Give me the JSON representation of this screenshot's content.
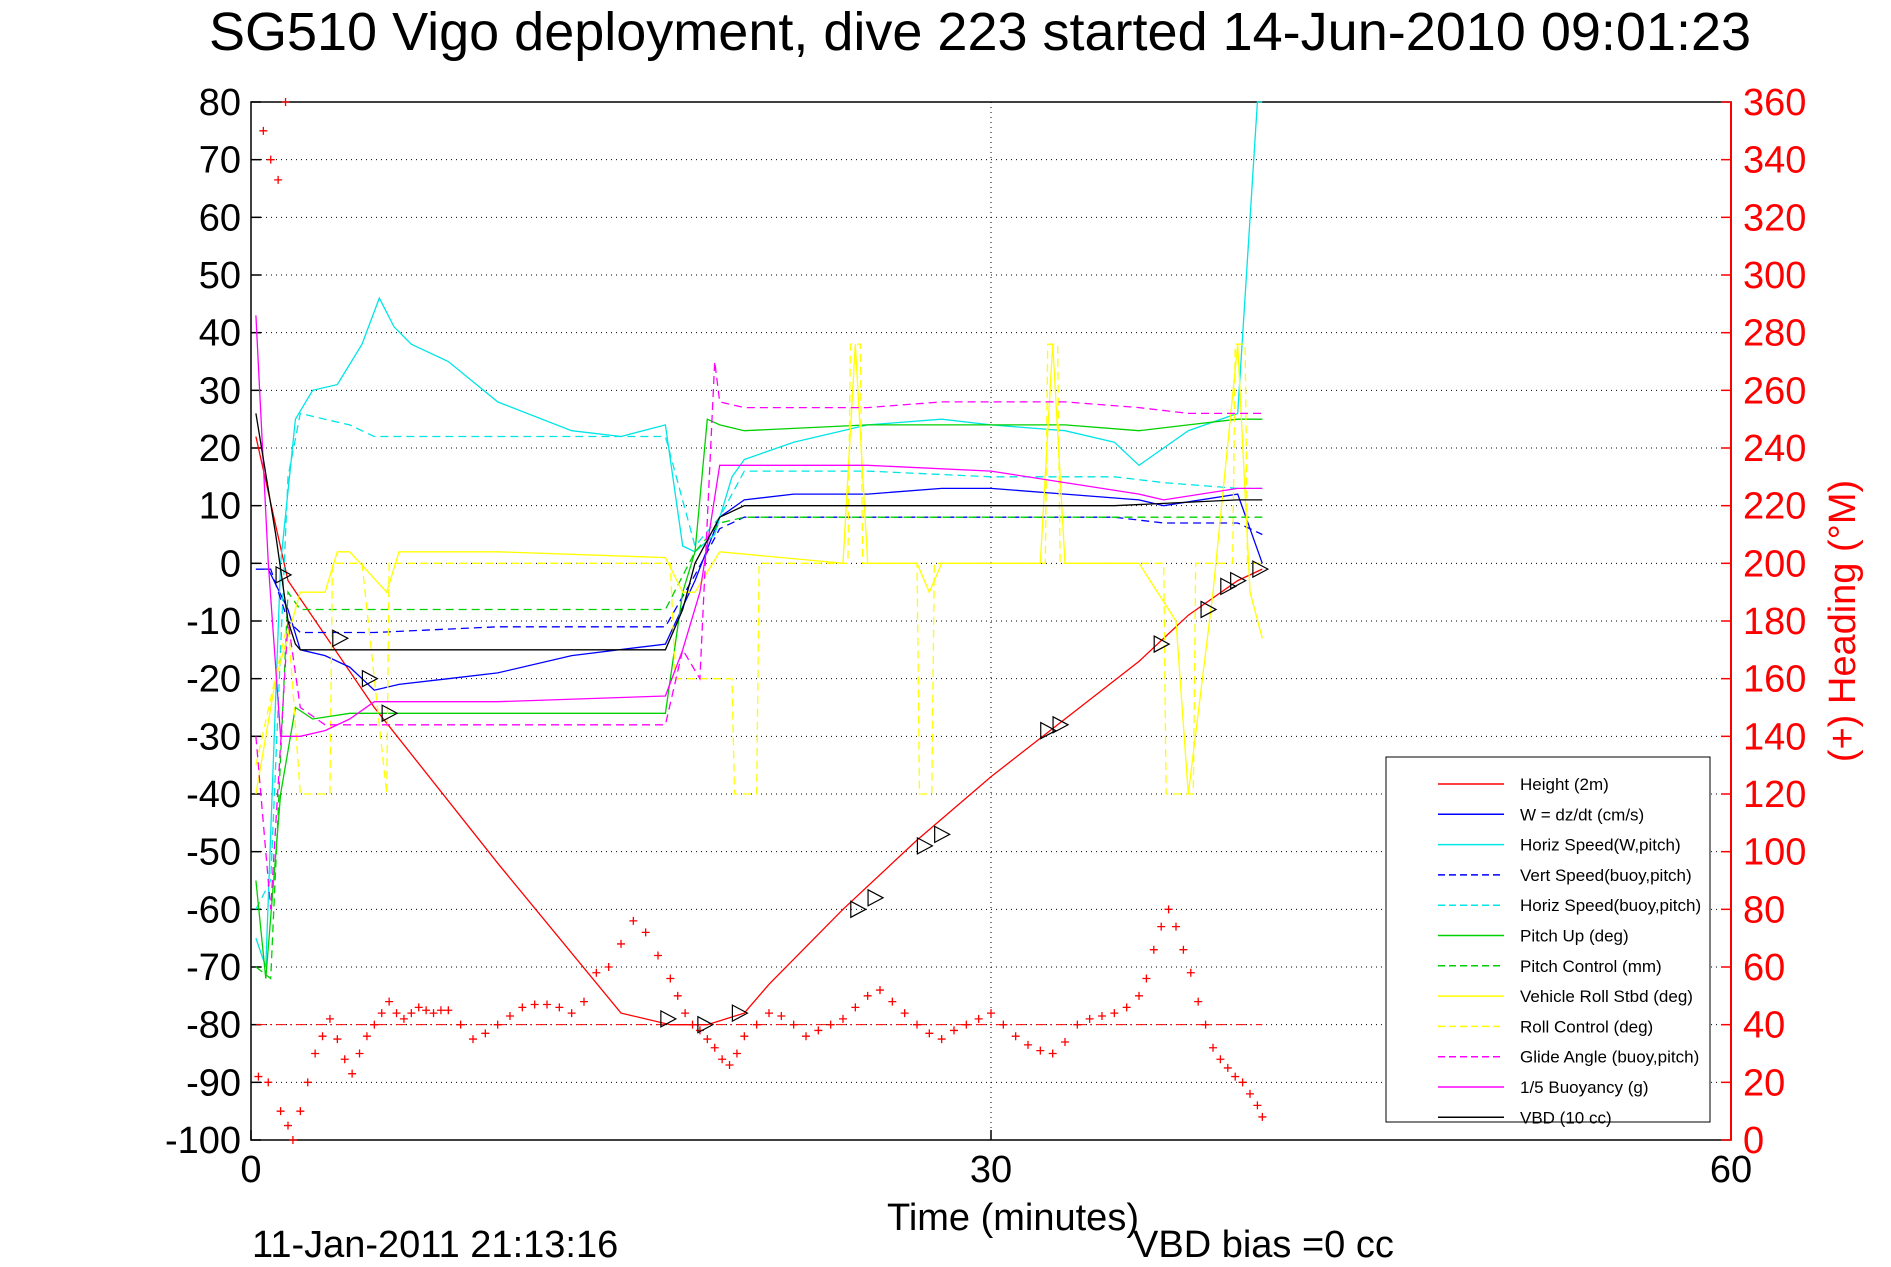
{
  "title": "SG510 Vigo deployment, dive 223 started 14-Jun-2010 09:01:23",
  "footer": {
    "timestamp": "11-Jan-2011 21:13:16",
    "vbd_bias": "VBD bias =0 cc"
  },
  "chart_data": {
    "type": "line",
    "xlabel": "Time (minutes)",
    "ylabel_right": "(+) Heading (°M)",
    "xlim": [
      0,
      60
    ],
    "ylim_left": [
      -100,
      80
    ],
    "ylim_right": [
      0,
      360
    ],
    "x_ticks": [
      "0",
      "30",
      "60"
    ],
    "y_ticks_left": [
      "80",
      "70",
      "60",
      "50",
      "40",
      "30",
      "20",
      "10",
      "0",
      "-10",
      "-20",
      "-30",
      "-40",
      "-50",
      "-60",
      "-70",
      "-80",
      "-90",
      "-100"
    ],
    "y_ticks_right": [
      "360",
      "340",
      "320",
      "300",
      "280",
      "260",
      "240",
      "220",
      "200",
      "180",
      "160",
      "140",
      "120",
      "100",
      "80",
      "60",
      "40",
      "20",
      "0"
    ],
    "grid": "dotted",
    "legend_position": "bottom-right",
    "colors": {
      "red": "#ff0000",
      "blue": "#0000ff",
      "cyan": "#00e5e5",
      "green": "#00d000",
      "yellow": "#ffff00",
      "magenta": "#ff00ff",
      "black": "#000000"
    },
    "series": [
      {
        "name": "Height (2m)",
        "color": "#ff0000",
        "dash": false,
        "x": [
          0.2,
          1.5,
          5,
          10,
          15,
          17,
          18.5,
          20,
          21,
          24,
          27,
          30,
          33,
          36,
          38,
          40,
          41
        ],
        "y": [
          22,
          -3,
          -25,
          -52,
          -78,
          -80,
          -80,
          -78,
          -73,
          -60,
          -48,
          -37,
          -27,
          -17,
          -9,
          -3,
          -1
        ]
      },
      {
        "name": "W = dz/dt (cm/s)",
        "color": "#0000ff",
        "dash": false,
        "x": [
          0.2,
          0.7,
          1.5,
          2,
          3,
          4,
          5,
          6,
          8,
          10,
          13,
          16.8,
          18,
          19,
          20,
          22,
          25,
          28,
          30,
          33,
          36,
          37,
          40,
          41
        ],
        "y": [
          -1,
          -1,
          -8,
          -15,
          -16,
          -18,
          -22,
          -21,
          -20,
          -19,
          -16,
          -14,
          -3,
          8,
          11,
          12,
          12,
          13,
          13,
          12,
          11,
          10,
          12,
          0
        ]
      },
      {
        "name": "Horiz Speed(W,pitch)",
        "color": "#00e5e5",
        "dash": false,
        "x": [
          0.2,
          0.6,
          1.2,
          1.8,
          2.5,
          3.5,
          4.5,
          5.2,
          5.8,
          6.5,
          8,
          10,
          13,
          15,
          16.8,
          17.5,
          18,
          18.8,
          19.5,
          20,
          22,
          25,
          28,
          30,
          33,
          35,
          36,
          38,
          40,
          40.8,
          41
        ],
        "y": [
          -65,
          -70,
          0,
          25,
          30,
          31,
          38,
          46,
          41,
          38,
          35,
          28,
          23,
          22,
          24,
          3,
          2,
          5,
          15,
          18,
          21,
          24,
          25,
          24,
          23,
          21,
          17,
          23,
          26,
          80,
          80
        ]
      },
      {
        "name": "Vert Speed(buoy,pitch)",
        "color": "#0000ff",
        "dash": true,
        "x": [
          0.2,
          0.8,
          1.5,
          2,
          5,
          10,
          16.8,
          18,
          19,
          20,
          25,
          30,
          35,
          37,
          40,
          41
        ],
        "y": [
          -1,
          -1,
          -10,
          -12,
          -12,
          -11,
          -11,
          -2,
          6,
          8,
          8,
          8,
          8,
          7,
          7,
          5
        ]
      },
      {
        "name": "Horiz Speed(buoy,pitch)",
        "color": "#00e5e5",
        "dash": true,
        "x": [
          0.2,
          0.8,
          1.5,
          2,
          3,
          4,
          5,
          6,
          10,
          16.8,
          18,
          19,
          20,
          25,
          30,
          35,
          37,
          40,
          41
        ],
        "y": [
          -60,
          -55,
          15,
          26,
          25,
          24,
          22,
          22,
          22,
          22,
          3,
          8,
          16,
          16,
          15,
          15,
          14,
          13,
          13
        ]
      },
      {
        "name": "Pitch Up (deg)",
        "color": "#00d000",
        "dash": false,
        "x": [
          0.2,
          0.6,
          1.2,
          1.8,
          2.5,
          4,
          6,
          10,
          16.8,
          17.5,
          18,
          18.5,
          19,
          20,
          25,
          30,
          33,
          36,
          38,
          40,
          41
        ],
        "y": [
          -55,
          -72,
          -40,
          -25,
          -27,
          -26,
          -26,
          -26,
          -26,
          -5,
          2,
          25,
          24,
          23,
          24,
          24,
          24,
          23,
          24,
          25,
          25
        ]
      },
      {
        "name": "Pitch Control (mm)",
        "color": "#00d000",
        "dash": true,
        "x": [
          0.2,
          0.8,
          1.5,
          2,
          10,
          16.8,
          18,
          19,
          20,
          30,
          40,
          41
        ],
        "y": [
          -70,
          -72,
          -5,
          -8,
          -8,
          -8,
          2,
          7,
          8,
          8,
          8,
          8
        ]
      },
      {
        "name": "Vehicle Roll Stbd (deg)",
        "color": "#ffff00",
        "dash": false,
        "x": [
          0.2,
          1,
          2,
          3,
          3.5,
          4,
          5.5,
          6,
          10,
          16.8,
          17.5,
          18,
          19,
          24,
          24.5,
          25,
          27,
          27.5,
          28,
          32,
          32.5,
          33,
          36,
          37.5,
          38,
          39,
          40,
          40.5,
          41
        ],
        "y": [
          -40,
          -20,
          -5,
          -5,
          2,
          2,
          -5,
          2,
          2,
          1,
          -5,
          -5,
          2,
          0,
          38,
          0,
          0,
          -5,
          0,
          0,
          38,
          0,
          0,
          -10,
          -40,
          -5,
          38,
          -5,
          -13
        ]
      },
      {
        "name": "Roll Control (deg)",
        "color": "#ffff00",
        "dash": true,
        "x": [
          0.2,
          1.5,
          2,
          3.2,
          3.3,
          4.5,
          5.5,
          5.6,
          17,
          17.2,
          19.5,
          19.6,
          20.5,
          20.6,
          24.2,
          24.3,
          24.7,
          24.8,
          27,
          27.1,
          27.6,
          27.7,
          32.2,
          32.3,
          32.7,
          32.8,
          37,
          37.1,
          38.2,
          38.3,
          39.8,
          39.9,
          40.3,
          40.4,
          41
        ],
        "y": [
          -35,
          -10,
          -40,
          -40,
          0,
          0,
          -40,
          0,
          0,
          -20,
          -20,
          -40,
          -40,
          0,
          0,
          38,
          38,
          0,
          0,
          -40,
          -40,
          0,
          0,
          38,
          38,
          0,
          0,
          -40,
          -40,
          0,
          0,
          38,
          38,
          0,
          0
        ]
      },
      {
        "name": "Glide Angle (buoy,pitch)",
        "color": "#ff00ff",
        "dash": true,
        "x": [
          0.2,
          0.8,
          1.5,
          2,
          3,
          5,
          8,
          10,
          16.8,
          17.5,
          18.2,
          18.8,
          19,
          20,
          25,
          28,
          30,
          33,
          36,
          38,
          40,
          41
        ],
        "y": [
          -30,
          -60,
          -10,
          -25,
          -28,
          -28,
          -28,
          -28,
          -28,
          -15,
          -20,
          35,
          28,
          27,
          27,
          28,
          28,
          28,
          27,
          26,
          26,
          26
        ]
      },
      {
        "name": "1/5 Buoyancy (g)",
        "color": "#ff00ff",
        "dash": false,
        "x": [
          0.2,
          0.7,
          1.2,
          1.6,
          2,
          3,
          4,
          5,
          6,
          10,
          16.8,
          17.5,
          18.2,
          19,
          20,
          25,
          30,
          36,
          37,
          40,
          41
        ],
        "y": [
          43,
          0,
          -30,
          -30,
          -30,
          -29,
          -27,
          -24,
          -24,
          -24,
          -23,
          -15,
          -5,
          17,
          17,
          17,
          16,
          12,
          11,
          13,
          13
        ]
      },
      {
        "name": "VBD (10 cc)",
        "color": "#000000",
        "dash": false,
        "x": [
          0.2,
          1,
          1.5,
          1.8,
          2,
          10,
          16.8,
          17.5,
          18,
          19,
          20,
          25,
          30,
          35,
          40,
          41
        ],
        "y": [
          26,
          5,
          -10,
          -14,
          -15,
          -15,
          -15,
          -8,
          0,
          8,
          10,
          10,
          10,
          10,
          11,
          11
        ]
      }
    ],
    "heading_markers": {
      "name": "(+) Heading (°M)",
      "color": "#ff0000",
      "marker": "+",
      "mean_line": 40,
      "x": [
        0.3,
        0.7,
        1.2,
        1.5,
        1.7,
        2,
        2.3,
        2.6,
        2.9,
        3.2,
        3.5,
        3.8,
        4.1,
        4.4,
        4.7,
        5,
        5.3,
        5.6,
        5.9,
        6.2,
        6.5,
        6.8,
        7.1,
        7.4,
        7.7,
        8,
        8.5,
        9,
        9.5,
        10,
        10.5,
        11,
        11.5,
        12,
        12.5,
        13,
        13.5,
        14,
        14.5,
        15,
        15.5,
        16,
        16.5,
        17,
        17.3,
        17.6,
        17.9,
        18.2,
        18.5,
        18.8,
        19.1,
        19.4,
        19.7,
        20,
        20.5,
        21,
        21.5,
        22,
        22.5,
        23,
        23.5,
        24,
        24.5,
        25,
        25.5,
        26,
        26.5,
        27,
        27.5,
        28,
        28.5,
        29,
        29.5,
        30,
        30.5,
        31,
        31.5,
        32,
        32.5,
        33,
        33.5,
        34,
        34.5,
        35,
        35.5,
        36,
        36.3,
        36.6,
        36.9,
        37.2,
        37.5,
        37.8,
        38.1,
        38.4,
        38.7,
        39,
        39.3,
        39.6,
        39.9,
        40.2,
        40.5,
        40.8,
        41,
        0.5,
        0.8,
        1.1,
        1.4
      ],
      "y": [
        22,
        20,
        10,
        5,
        0,
        10,
        20,
        30,
        36,
        42,
        35,
        28,
        23,
        30,
        36,
        40,
        44,
        48,
        44,
        42,
        44,
        46,
        45,
        44,
        45,
        45,
        40,
        35,
        37,
        40,
        43,
        46,
        47,
        47,
        46,
        44,
        48,
        58,
        60,
        68,
        76,
        72,
        64,
        56,
        50,
        44,
        40,
        38,
        35,
        32,
        28,
        26,
        30,
        36,
        40,
        44,
        43,
        40,
        36,
        38,
        40,
        42,
        46,
        50,
        52,
        48,
        44,
        40,
        37,
        35,
        38,
        40,
        42,
        44,
        40,
        36,
        33,
        31,
        30,
        34,
        40,
        42,
        43,
        44,
        46,
        50,
        56,
        66,
        74,
        80,
        74,
        66,
        58,
        48,
        40,
        32,
        28,
        25,
        22,
        20,
        16,
        12,
        8,
        350,
        340,
        333,
        360
      ]
    },
    "triangle_markers": {
      "color": "#000000",
      "x": [
        1.3,
        3.6,
        4.8,
        5.6,
        16.9,
        18.4,
        19.8,
        24.6,
        25.3,
        27.3,
        28,
        32.3,
        32.8,
        36.9,
        38.8,
        39.6,
        40,
        40.9
      ],
      "y": [
        -2,
        -13,
        -20,
        -26,
        -79,
        -80,
        -78,
        -60,
        -58,
        -49,
        -47,
        -29,
        -28,
        -14,
        -8,
        -4,
        -3,
        -1
      ]
    }
  }
}
